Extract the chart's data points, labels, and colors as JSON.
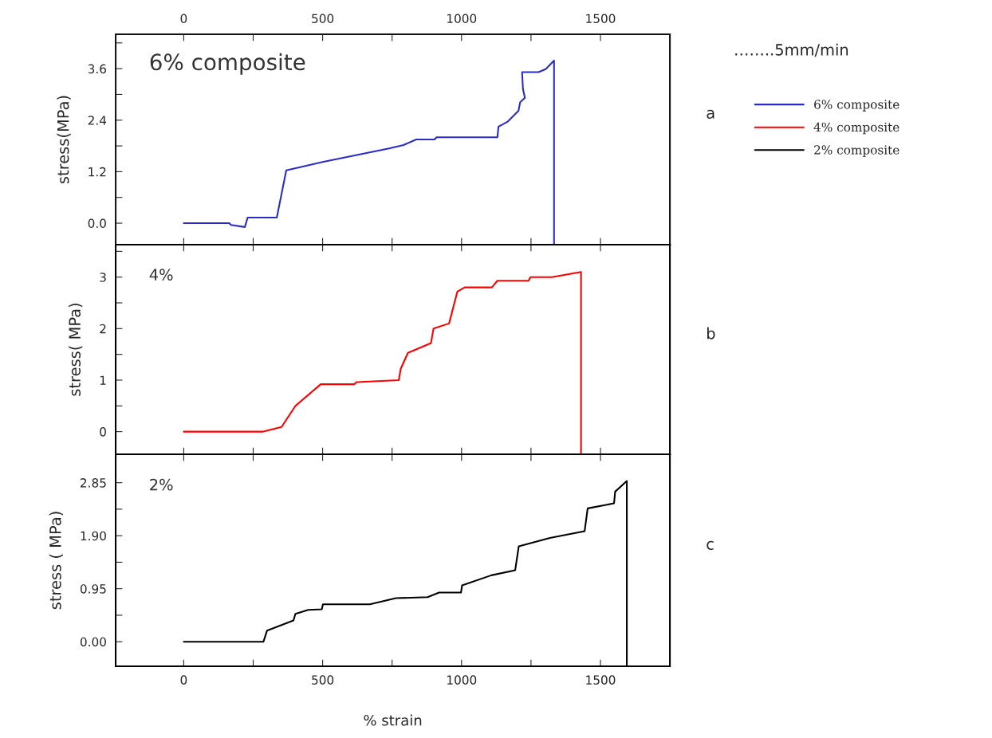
{
  "chart_data": [
    {
      "type": "line",
      "ylabel": "stress(MPa)",
      "xlim": [
        -245,
        1750
      ],
      "xticks": [
        0,
        {
          "value": 250,
          "label": null
        },
        500,
        {
          "value": 750,
          "label": null
        },
        1000,
        {
          "value": 1250,
          "label": null
        },
        1500
      ],
      "tick_labels": "y",
      "x2lim": [
        -245,
        1750
      ],
      "x2ticks": [
        0,
        {
          "value": 250,
          "label": null
        },
        500,
        {
          "value": 750,
          "label": null
        },
        1000,
        {
          "value": 1250,
          "label": null
        },
        1500
      ],
      "ylim": [
        -0.5,
        4.4
      ],
      "yticks": [
        {
          "value": 0,
          "label": "0.0"
        },
        {
          "value": 0.6,
          "label": null
        },
        1.2,
        {
          "value": 1.8,
          "label": null
        },
        2.4,
        {
          "value": 3.0,
          "label": null
        },
        3.6,
        {
          "value": 4.2,
          "label": null
        }
      ],
      "legend": "right",
      "annotations": [
        "6% composite",
        "……..5mm/min",
        "a"
      ],
      "series": [
        {
          "name": "6% composite",
          "color": "#2b2bc8",
          "x": [
            0,
            164,
            170,
            220,
            230,
            335,
            369,
            503,
            739,
            791,
            837,
            903,
            910,
            1129,
            1133,
            1165,
            1205,
            1211,
            1228,
            1221,
            1218,
            1277,
            1303,
            1333,
            1333
          ],
          "values": [
            0,
            0,
            -0.04,
            -0.09,
            0.13,
            0.13,
            1.23,
            1.43,
            1.74,
            1.82,
            1.95,
            1.95,
            2.0,
            2.0,
            2.25,
            2.36,
            2.62,
            2.82,
            2.92,
            3.13,
            3.52,
            3.52,
            3.59,
            3.79,
            -0.5
          ]
        }
      ]
    },
    {
      "type": "line",
      "ylabel": "stress( MPa)",
      "xlim": [
        -245,
        1750
      ],
      "xticks": [
        0,
        {
          "value": 250,
          "label": null
        },
        500,
        {
          "value": 750,
          "label": null
        },
        1000,
        {
          "value": 1250,
          "label": null
        },
        1500
      ],
      "ylim": [
        -0.44,
        3.63
      ],
      "yticks": [
        0,
        {
          "value": 0.5,
          "label": null
        },
        1,
        {
          "value": 1.5,
          "label": null
        },
        2,
        {
          "value": 2.5,
          "label": null
        },
        3,
        {
          "value": 3.5,
          "label": null
        }
      ],
      "tick_labels": "y",
      "annotations": [
        "4%",
        "b"
      ],
      "series": [
        {
          "name": "4% composite",
          "color": "#ff0000",
          "x": [
            0,
            286,
            352,
            402,
            493,
            614,
            621,
            774,
            781,
            807,
            890,
            899,
            955,
            985,
            1011,
            1109,
            1129,
            1241,
            1248,
            1325,
            1430,
            1430
          ],
          "values": [
            0,
            0,
            0.09,
            0.5,
            0.92,
            0.92,
            0.96,
            1.0,
            1.22,
            1.53,
            1.72,
            2.0,
            2.1,
            2.72,
            2.8,
            2.8,
            2.93,
            2.93,
            3.0,
            3.0,
            3.1,
            -0.44
          ]
        }
      ]
    },
    {
      "type": "line",
      "xlabel": "% strain",
      "ylabel": "stress ( MPa)",
      "xlim": [
        -245,
        1750
      ],
      "xticks": [
        0,
        {
          "value": 250,
          "label": null
        },
        500,
        {
          "value": 750,
          "label": null
        },
        1000,
        {
          "value": 1250,
          "label": null
        },
        1500
      ],
      "ylim": [
        -0.44,
        3.36
      ],
      "yticks": [
        {
          "value": 0,
          "label": "0.00"
        },
        {
          "value": 0.475,
          "label": null
        },
        0.95,
        {
          "value": 1.425,
          "label": null
        },
        {
          "value": 1.9,
          "label": "1.90"
        },
        {
          "value": 2.375,
          "label": null
        },
        2.85
      ],
      "annotations": [
        "2%",
        "c"
      ],
      "series": [
        {
          "name": "2% composite",
          "color": "#000000",
          "x": [
            0,
            287,
            300,
            395,
            402,
            448,
            497,
            501,
            670,
            764,
            878,
            919,
            998,
            1002,
            1107,
            1193,
            1206,
            1318,
            1443,
            1454,
            1549,
            1553,
            1595,
            1595
          ],
          "values": [
            0,
            0,
            0.2,
            0.38,
            0.5,
            0.57,
            0.58,
            0.67,
            0.67,
            0.78,
            0.8,
            0.88,
            0.88,
            1.01,
            1.19,
            1.28,
            1.71,
            1.86,
            1.98,
            2.39,
            2.48,
            2.69,
            2.88,
            -0.44
          ]
        }
      ]
    }
  ]
}
